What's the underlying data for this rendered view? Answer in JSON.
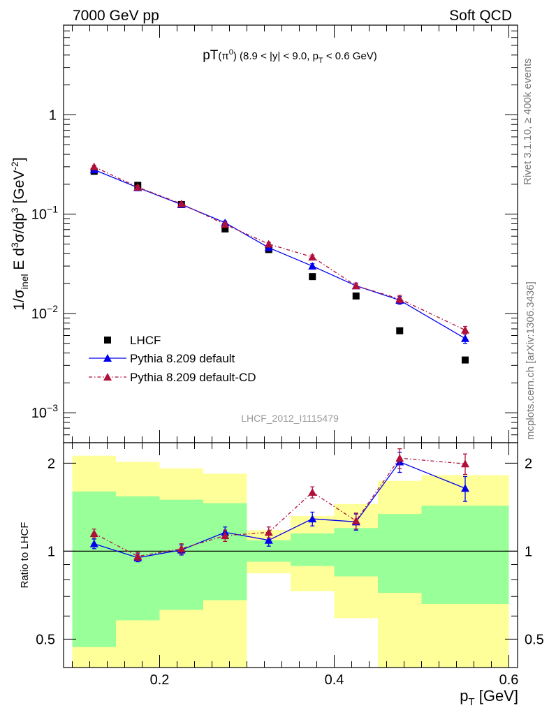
{
  "header": {
    "left": "7000 GeV pp",
    "right": "Soft QCD"
  },
  "plot_title": {
    "main": "pT",
    "particle": "(π",
    "particle_sup": "0",
    "range": ") (8.9 < |y| < 9.0, p",
    "range_sub": "T",
    "range_end": " < 0.6 GeV)"
  },
  "side_text": {
    "rivet": "Rivet 3.1.10, ≥ 400k events",
    "mcplots": "mcplots.cern.ch [arXiv:1306.3436]"
  },
  "analysis_label": "LHCF_2012_I1115479",
  "colors": {
    "data": "#000000",
    "pythia_default": "#0000ee",
    "pythia_cd": "#b0103a",
    "band_inner": "#99ff99",
    "band_outer": "#ffff99"
  },
  "chart_data": [
    {
      "type": "scatter",
      "panel": "main",
      "ylabel": "1/σ_inel E d³σ/dp³ [GeV⁻²]",
      "ylabel_parts": {
        "a": "1/σ",
        "a_sub": "inel",
        "b": " E d",
        "b_sup": "3",
        "c": "σ/dp",
        "c_sup": "3",
        "d": " [GeV",
        "d_sup": "-2",
        "e": "]"
      },
      "yscale": "log",
      "ylim": [
        0.0005,
        8
      ],
      "xlim": [
        0.09,
        0.61
      ],
      "y_tick_labels": [
        {
          "value": 1,
          "base": "1",
          "exp": ""
        },
        {
          "value": 0.1,
          "base": "10",
          "exp": "−1"
        },
        {
          "value": 0.01,
          "base": "10",
          "exp": "−2"
        },
        {
          "value": 0.001,
          "base": "10",
          "exp": "−3"
        }
      ],
      "series": [
        {
          "name": "LHCF",
          "marker": "square",
          "x": [
            0.125,
            0.175,
            0.225,
            0.275,
            0.325,
            0.375,
            0.425,
            0.475,
            0.55
          ],
          "y": [
            0.27,
            0.195,
            0.125,
            0.071,
            0.044,
            0.0235,
            0.015,
            0.0067,
            0.0034
          ]
        },
        {
          "name": "Pythia 8.209 default",
          "marker": "triangle",
          "line": "solid",
          "x": [
            0.125,
            0.175,
            0.225,
            0.275,
            0.325,
            0.375,
            0.425,
            0.475,
            0.55
          ],
          "y": [
            0.28,
            0.185,
            0.125,
            0.082,
            0.046,
            0.03,
            0.019,
            0.0136,
            0.0056
          ],
          "yerr": [
            0.01,
            0.006,
            0.004,
            0.003,
            0.0018,
            0.0017,
            0.0012,
            0.0012,
            0.0006
          ]
        },
        {
          "name": "Pythia 8.209 default-CD",
          "marker": "triangle",
          "line": "dash-dot",
          "x": [
            0.125,
            0.175,
            0.225,
            0.275,
            0.325,
            0.375,
            0.425,
            0.475,
            0.55
          ],
          "y": [
            0.3,
            0.187,
            0.127,
            0.079,
            0.05,
            0.037,
            0.019,
            0.014,
            0.0068
          ],
          "yerr": [
            0.01,
            0.006,
            0.004,
            0.003,
            0.0019,
            0.0018,
            0.0012,
            0.0012,
            0.0006
          ]
        }
      ],
      "legend_position": "bottom-left"
    },
    {
      "type": "scatter",
      "panel": "ratio",
      "xlabel": "p_T [GeV]",
      "xlabel_parts": {
        "a": "p",
        "a_sub": "T",
        "b": " [GeV]"
      },
      "ylabel": "Ratio to LHCF",
      "yscale": "log",
      "ylim": [
        0.4,
        2.35
      ],
      "xlim": [
        0.09,
        0.61
      ],
      "x_ticks": [
        0.2,
        0.4,
        0.6
      ],
      "x_tick_labels": [
        "0.2",
        "0.4",
        "0.6"
      ],
      "y_ticks": [
        0.5,
        1,
        2
      ],
      "y_tick_labels": [
        "0.5",
        "1",
        "2"
      ],
      "bands": [
        {
          "x": [
            0.1,
            0.15
          ],
          "inner": [
            0.47,
            1.6
          ],
          "outer": [
            0.35,
            2.12
          ]
        },
        {
          "x": [
            0.15,
            0.2
          ],
          "inner": [
            0.58,
            1.54
          ],
          "outer": [
            0.35,
            2.02
          ]
        },
        {
          "x": [
            0.2,
            0.25
          ],
          "inner": [
            0.63,
            1.5
          ],
          "outer": [
            0.35,
            1.92
          ]
        },
        {
          "x": [
            0.25,
            0.3
          ],
          "inner": [
            0.68,
            1.46
          ],
          "outer": [
            0.35,
            1.84
          ]
        },
        {
          "x": [
            0.3,
            0.35
          ],
          "inner": [
            0.92,
            1.09
          ],
          "outer": [
            0.84,
            1.18
          ]
        },
        {
          "x": [
            0.35,
            0.4
          ],
          "inner": [
            0.89,
            1.15
          ],
          "outer": [
            0.73,
            1.32
          ]
        },
        {
          "x": [
            0.4,
            0.45
          ],
          "inner": [
            0.82,
            1.2
          ],
          "outer": [
            0.59,
            1.45
          ]
        },
        {
          "x": [
            0.45,
            0.5
          ],
          "inner": [
            0.72,
            1.34
          ],
          "outer": [
            0.35,
            1.74
          ]
        },
        {
          "x": [
            0.5,
            0.6
          ],
          "inner": [
            0.66,
            1.43
          ],
          "outer": [
            0.35,
            1.82
          ]
        }
      ],
      "series": [
        {
          "name": "Pythia 8.209 default",
          "x": [
            0.125,
            0.175,
            0.225,
            0.275,
            0.325,
            0.375,
            0.425,
            0.475,
            0.55
          ],
          "y": [
            1.06,
            0.95,
            1.01,
            1.16,
            1.09,
            1.29,
            1.26,
            2.02,
            1.64
          ],
          "yerr": [
            0.04,
            0.03,
            0.04,
            0.05,
            0.05,
            0.07,
            0.08,
            0.16,
            0.16
          ]
        },
        {
          "name": "Pythia 8.209 default-CD",
          "x": [
            0.125,
            0.175,
            0.225,
            0.275,
            0.325,
            0.375,
            0.425,
            0.475,
            0.55
          ],
          "y": [
            1.15,
            0.96,
            1.02,
            1.13,
            1.16,
            1.59,
            1.27,
            2.08,
            1.99
          ],
          "yerr": [
            0.04,
            0.03,
            0.04,
            0.05,
            0.05,
            0.07,
            0.08,
            0.16,
            0.16
          ]
        }
      ]
    }
  ]
}
